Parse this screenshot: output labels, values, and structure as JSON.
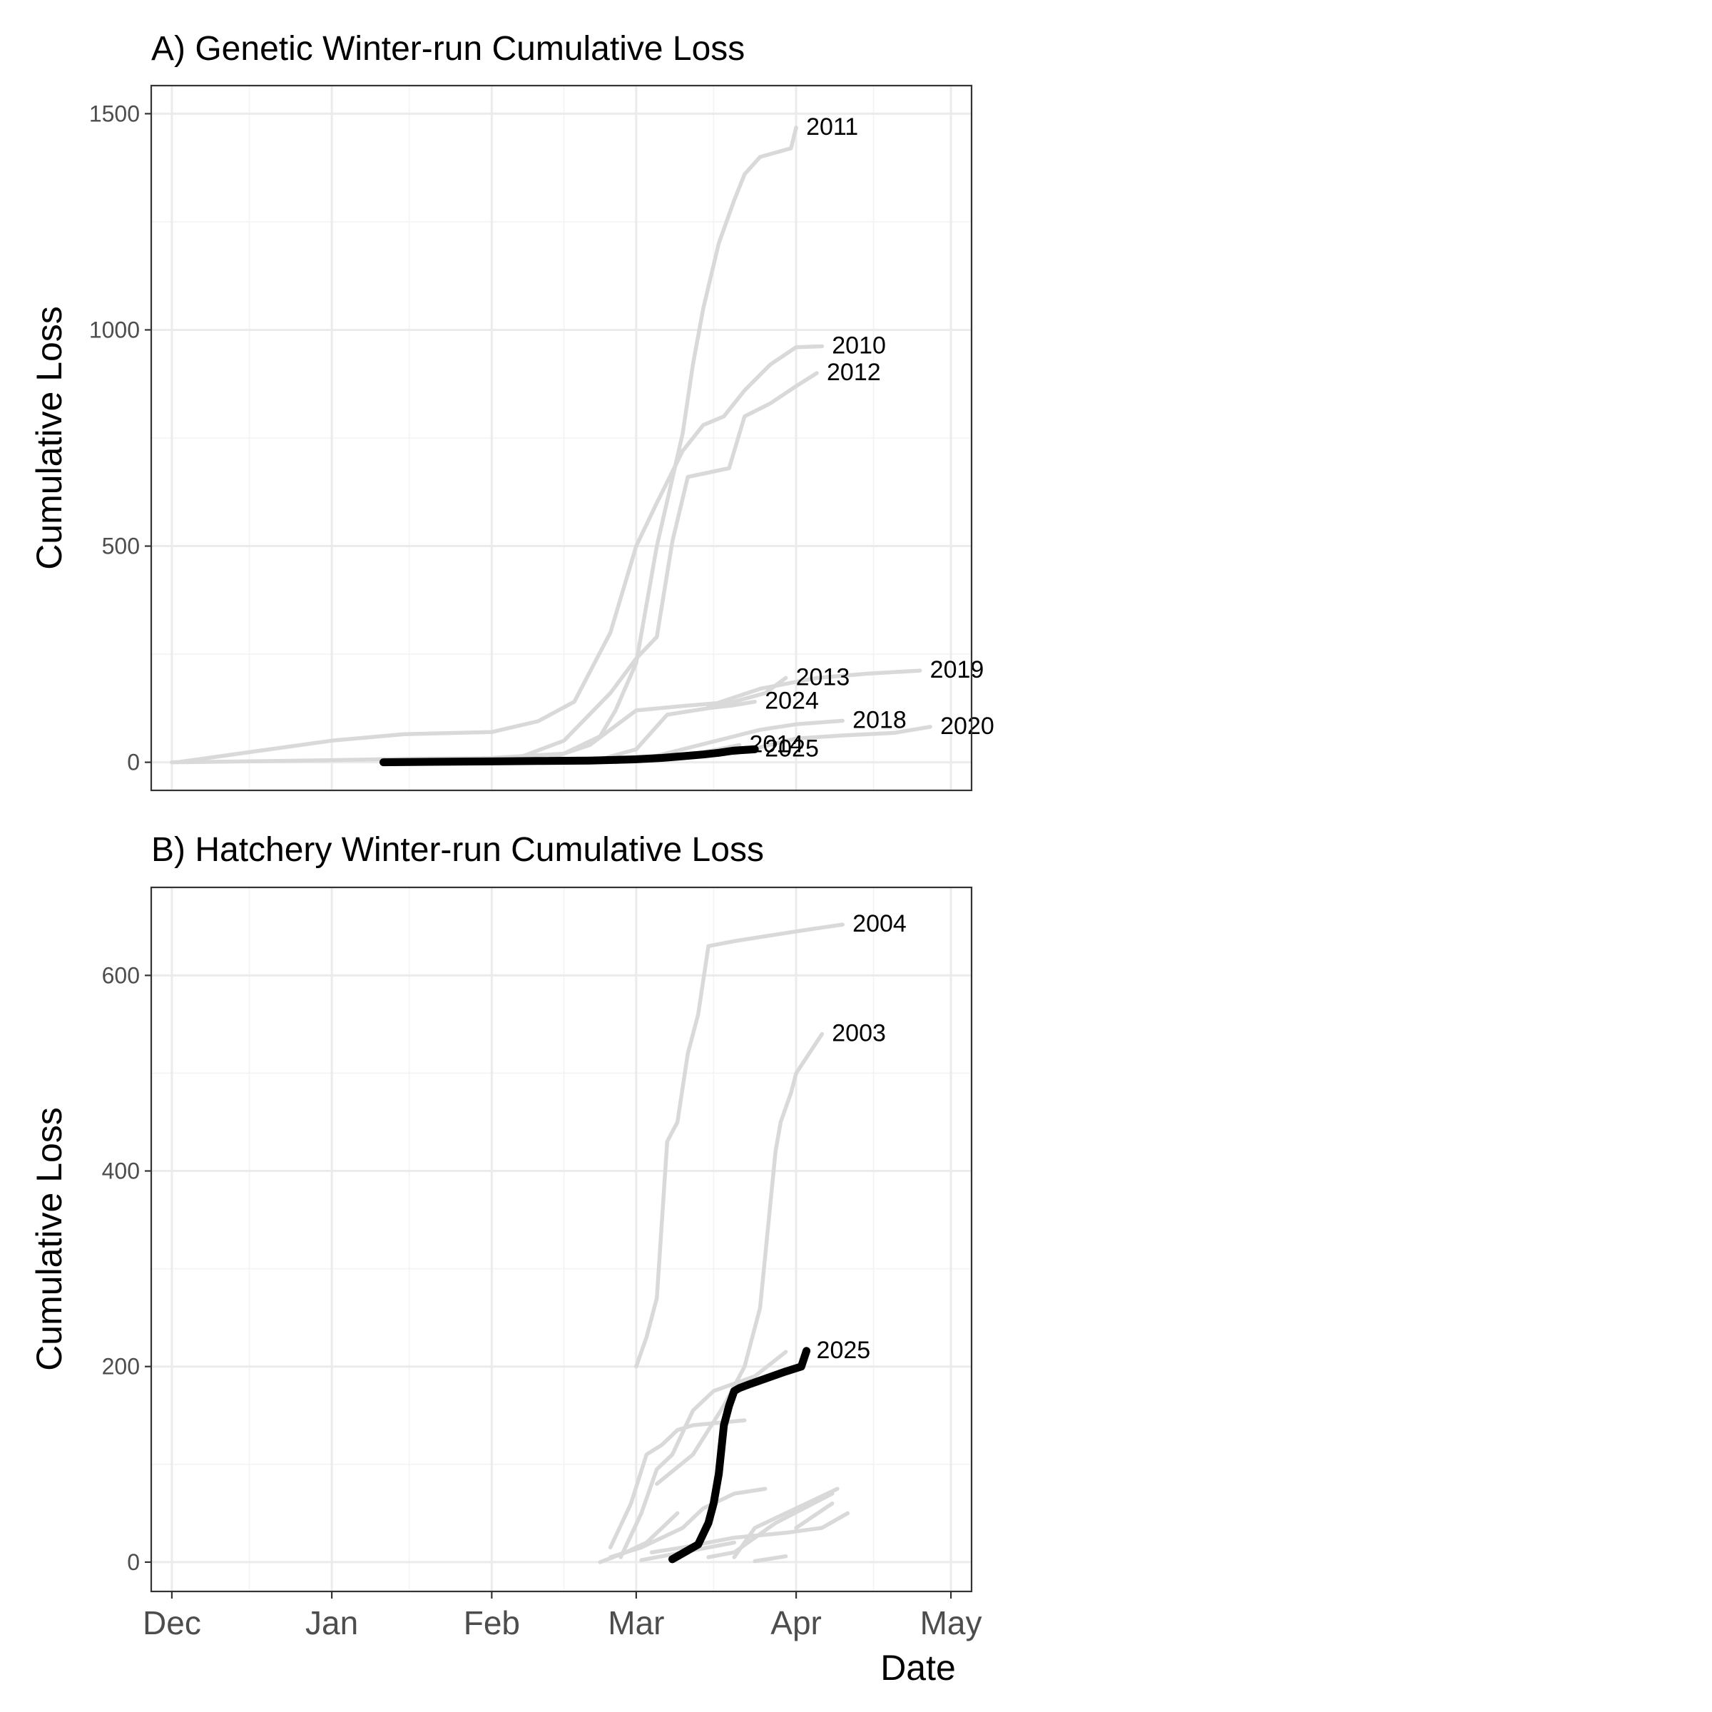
{
  "chart_data": [
    {
      "type": "line",
      "title": "A) Genetic Winter-run Cumulative Loss",
      "xlabel": "",
      "ylabel": "Cumulative Loss",
      "x_axis": "date",
      "xlim": [
        "2024-11-27",
        "2025-05-05"
      ],
      "ylim": [
        -65,
        1565
      ],
      "y_ticks": [
        0,
        500,
        1000,
        1500
      ],
      "x_ticks": [],
      "grid": true,
      "legend": "none",
      "colors": {
        "history": "#d9d9d9",
        "current": "#000000"
      },
      "series": [
        {
          "name": "2011",
          "x": [
            "2024-12-01",
            "2024-12-15",
            "2025-01-01",
            "2025-01-15",
            "2025-02-01",
            "2025-02-15",
            "2025-02-22",
            "2025-02-25",
            "2025-03-01",
            "2025-03-05",
            "2025-03-10",
            "2025-03-12",
            "2025-03-14",
            "2025-03-17",
            "2025-03-20",
            "2025-03-22",
            "2025-03-25",
            "2025-03-31",
            "2025-04-01"
          ],
          "y": [
            0,
            2,
            5,
            8,
            10,
            20,
            60,
            120,
            230,
            500,
            760,
            920,
            1050,
            1200,
            1300,
            1360,
            1400,
            1420,
            1468
          ]
        },
        {
          "name": "2010",
          "x": [
            "2024-12-02",
            "2024-12-20",
            "2025-01-01",
            "2025-01-15",
            "2025-02-01",
            "2025-02-10",
            "2025-02-17",
            "2025-02-24",
            "2025-03-01",
            "2025-03-05",
            "2025-03-10",
            "2025-03-14",
            "2025-03-18",
            "2025-03-22",
            "2025-03-27",
            "2025-04-01",
            "2025-04-06"
          ],
          "y": [
            0,
            30,
            50,
            65,
            70,
            95,
            140,
            300,
            500,
            600,
            720,
            780,
            800,
            860,
            920,
            960,
            962
          ]
        },
        {
          "name": "2012",
          "x": [
            "2025-01-28",
            "2025-02-05",
            "2025-02-15",
            "2025-02-24",
            "2025-03-01",
            "2025-03-05",
            "2025-03-08",
            "2025-03-11",
            "2025-03-15",
            "2025-03-19",
            "2025-03-22",
            "2025-03-27",
            "2025-04-01",
            "2025-04-05"
          ],
          "y": [
            0,
            5,
            50,
            160,
            240,
            290,
            510,
            660,
            670,
            680,
            800,
            830,
            870,
            900
          ]
        },
        {
          "name": "2013",
          "x": [
            "2025-02-10",
            "2025-02-20",
            "2025-03-01",
            "2025-03-10",
            "2025-03-20",
            "2025-03-26",
            "2025-03-30"
          ],
          "y": [
            0,
            40,
            120,
            130,
            140,
            160,
            195
          ]
        },
        {
          "name": "2019",
          "x": [
            "2025-03-15",
            "2025-03-25",
            "2025-04-05",
            "2025-04-15",
            "2025-04-25"
          ],
          "y": [
            130,
            170,
            195,
            205,
            212
          ]
        },
        {
          "name": "2024",
          "x": [
            "2025-02-20",
            "2025-03-01",
            "2025-03-07",
            "2025-03-15",
            "2025-03-20",
            "2025-03-24"
          ],
          "y": [
            0,
            30,
            110,
            125,
            132,
            140
          ]
        },
        {
          "name": "2018",
          "x": [
            "2025-02-25",
            "2025-03-05",
            "2025-03-15",
            "2025-03-25",
            "2025-04-01",
            "2025-04-10"
          ],
          "y": [
            0,
            15,
            45,
            75,
            88,
            96
          ]
        },
        {
          "name": "2020",
          "x": [
            "2025-03-20",
            "2025-04-01",
            "2025-04-10",
            "2025-04-20",
            "2025-04-27"
          ],
          "y": [
            20,
            55,
            62,
            68,
            82
          ]
        },
        {
          "name": "2014",
          "x": [
            "2025-02-15",
            "2025-03-01",
            "2025-03-10",
            "2025-03-17",
            "2025-03-21"
          ],
          "y": [
            0,
            5,
            15,
            30,
            40
          ]
        },
        {
          "name": "2025",
          "x": [
            "2025-01-11",
            "2025-01-20",
            "2025-02-01",
            "2025-02-10",
            "2025-02-20",
            "2025-03-01",
            "2025-03-06",
            "2025-03-10",
            "2025-03-14",
            "2025-03-17",
            "2025-03-20",
            "2025-03-24"
          ],
          "y": [
            0,
            1,
            2,
            3,
            4,
            7,
            10,
            14,
            18,
            22,
            27,
            30
          ]
        }
      ]
    },
    {
      "type": "line",
      "title": "B) Hatchery Winter-run Cumulative Loss",
      "xlabel": "Date",
      "ylabel": "Cumulative Loss",
      "x_axis": "date",
      "xlim": [
        "2024-11-27",
        "2025-05-05"
      ],
      "ylim": [
        -30,
        690
      ],
      "y_ticks": [
        0,
        200,
        400,
        600
      ],
      "x_ticks": [
        "Dec",
        "Jan",
        "Feb",
        "Mar",
        "Apr",
        "May"
      ],
      "grid": true,
      "legend": "none",
      "colors": {
        "history": "#d9d9d9",
        "current": "#000000"
      },
      "series": [
        {
          "name": "2004",
          "x": [
            "2025-03-01",
            "2025-03-03",
            "2025-03-05",
            "2025-03-07",
            "2025-03-09",
            "2025-03-11",
            "2025-03-13",
            "2025-03-15",
            "2025-03-20",
            "2025-04-01",
            "2025-04-10"
          ],
          "y": [
            200,
            230,
            270,
            430,
            450,
            520,
            560,
            630,
            635,
            645,
            652
          ]
        },
        {
          "name": "2003",
          "x": [
            "2025-03-05",
            "2025-03-12",
            "2025-03-18",
            "2025-03-22",
            "2025-03-25",
            "2025-03-28",
            "2025-03-29",
            "2025-03-31",
            "2025-04-01",
            "2025-04-06"
          ],
          "y": [
            80,
            110,
            160,
            200,
            260,
            420,
            450,
            480,
            500,
            540
          ]
        },
        {
          "name": "",
          "x": [
            "2025-02-24",
            "2025-02-28",
            "2025-03-03",
            "2025-03-06",
            "2025-03-09",
            "2025-03-12",
            "2025-03-22"
          ],
          "y": [
            15,
            60,
            110,
            120,
            135,
            140,
            145
          ]
        },
        {
          "name": "",
          "x": [
            "2025-02-26",
            "2025-03-02",
            "2025-03-05",
            "2025-03-08",
            "2025-03-12",
            "2025-03-16",
            "2025-03-24",
            "2025-03-30"
          ],
          "y": [
            5,
            50,
            95,
            110,
            155,
            175,
            190,
            215
          ]
        },
        {
          "name": "",
          "x": [
            "2025-02-24",
            "2025-03-02",
            "2025-03-06",
            "2025-03-10",
            "2025-03-14",
            "2025-03-20",
            "2025-03-26"
          ],
          "y": [
            5,
            15,
            25,
            35,
            55,
            70,
            75
          ]
        },
        {
          "name": "",
          "x": [
            "2025-02-22",
            "2025-02-27",
            "2025-03-03",
            "2025-03-07",
            "2025-03-09"
          ],
          "y": [
            0,
            10,
            20,
            40,
            50
          ]
        },
        {
          "name": "",
          "x": [
            "2025-03-04",
            "2025-03-10",
            "2025-03-20",
            "2025-03-30",
            "2025-04-06",
            "2025-04-11"
          ],
          "y": [
            10,
            15,
            25,
            30,
            35,
            50
          ]
        },
        {
          "name": "",
          "x": [
            "2025-03-15",
            "2025-03-20",
            "2025-03-28",
            "2025-04-08"
          ],
          "y": [
            5,
            10,
            40,
            70
          ]
        },
        {
          "name": "",
          "x": [
            "2025-03-20",
            "2025-03-24",
            "2025-04-01",
            "2025-04-09"
          ],
          "y": [
            5,
            35,
            55,
            75
          ]
        },
        {
          "name": "",
          "x": [
            "2025-03-02",
            "2025-03-08",
            "2025-03-15",
            "2025-03-20"
          ],
          "y": [
            2,
            8,
            15,
            20
          ]
        },
        {
          "name": "",
          "x": [
            "2025-03-24",
            "2025-03-30"
          ],
          "y": [
            1,
            6
          ]
        },
        {
          "name": "",
          "x": [
            "2025-04-01",
            "2025-04-08"
          ],
          "y": [
            35,
            60
          ]
        },
        {
          "name": "2025",
          "x": [
            "2025-03-08",
            "2025-03-13",
            "2025-03-15",
            "2025-03-16",
            "2025-03-17",
            "2025-03-18",
            "2025-03-19",
            "2025-03-20",
            "2025-03-21",
            "2025-03-23",
            "2025-03-30",
            "2025-04-02",
            "2025-04-03"
          ],
          "y": [
            3,
            18,
            40,
            60,
            90,
            140,
            160,
            175,
            178,
            182,
            195,
            200,
            216
          ]
        }
      ]
    }
  ]
}
